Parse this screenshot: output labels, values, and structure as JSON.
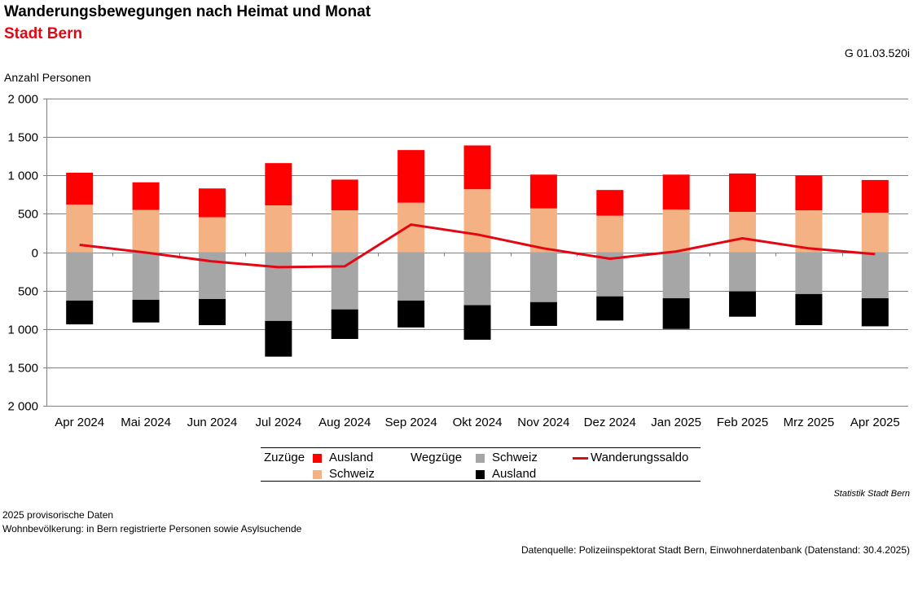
{
  "header": {
    "title": "Wanderungsbewegungen nach Heimat und Monat",
    "subtitle": "Stadt Bern",
    "code": "G 01.03.520i"
  },
  "chart_data": {
    "type": "bar",
    "stacked": true,
    "ylabel": "Anzahl Personen",
    "ylim": [
      -2000,
      2000
    ],
    "yticks": [
      2000,
      1500,
      1000,
      500,
      0,
      -500,
      -1000,
      -1500,
      -2000
    ],
    "ytick_labels": [
      "2 000",
      "1 500",
      "1 000",
      "500",
      "0",
      "500",
      "1 000",
      "1 500",
      "2 000"
    ],
    "grid": true,
    "legend_position": "bottom",
    "categories": [
      "Apr 2024",
      "Mai 2024",
      "Jun 2024",
      "Jul 2024",
      "Aug 2024",
      "Sep 2024",
      "Okt 2024",
      "Nov 2024",
      "Dez 2024",
      "Jan 2025",
      "Feb 2025",
      "Mrz 2025",
      "Apr 2025"
    ],
    "series": [
      {
        "name": "Schweiz",
        "group": "Zuzüge",
        "kind": "bar",
        "color": "#f4b183",
        "values": [
          620,
          550,
          455,
          610,
          545,
          645,
          820,
          570,
          475,
          555,
          525,
          545,
          515
        ]
      },
      {
        "name": "Ausland",
        "group": "Zuzüge",
        "kind": "bar",
        "color": "#ff0000",
        "values": [
          415,
          360,
          375,
          550,
          400,
          685,
          570,
          440,
          335,
          455,
          500,
          455,
          425
        ]
      },
      {
        "name": "Schweiz",
        "group": "Wegzüge",
        "kind": "bar",
        "color": "#a6a6a6",
        "values": [
          -630,
          -620,
          -610,
          -895,
          -745,
          -630,
          -690,
          -650,
          -575,
          -600,
          -510,
          -545,
          -600
        ]
      },
      {
        "name": "Ausland",
        "group": "Wegzüge",
        "kind": "bar",
        "color": "#000000",
        "values": [
          -310,
          -295,
          -340,
          -465,
          -385,
          -350,
          -450,
          -310,
          -315,
          -400,
          -330,
          -405,
          -365
        ]
      },
      {
        "name": "Wanderungssaldo",
        "kind": "line",
        "color": "#e30613",
        "values": [
          95,
          -5,
          -120,
          -195,
          -185,
          360,
          230,
          50,
          -85,
          10,
          180,
          50,
          -25
        ]
      }
    ]
  },
  "legend": {
    "group_in": "Zuzüge",
    "group_out": "Wegzüge",
    "in_ausland": "Ausland",
    "in_schweiz": "Schweiz",
    "out_schweiz": "Schweiz",
    "out_ausland": "Ausland",
    "saldo": "Wanderungssaldo",
    "colors": {
      "in_ausland": "#ff0000",
      "in_schweiz": "#f4b183",
      "out_schweiz": "#a6a6a6",
      "out_ausland": "#000000",
      "saldo": "#e30613"
    }
  },
  "footer": {
    "source_line": "Statistik Stadt Bern",
    "note1": "2025 provisorische Daten",
    "note2": "Wohnbevölkerung: in Bern registrierte Personen sowie Asylsuchende",
    "datasource": "Datenquelle: Polizeiinspektorat Stadt Bern, Einwohnerdatenbank (Datenstand: 30.4.2025)"
  }
}
